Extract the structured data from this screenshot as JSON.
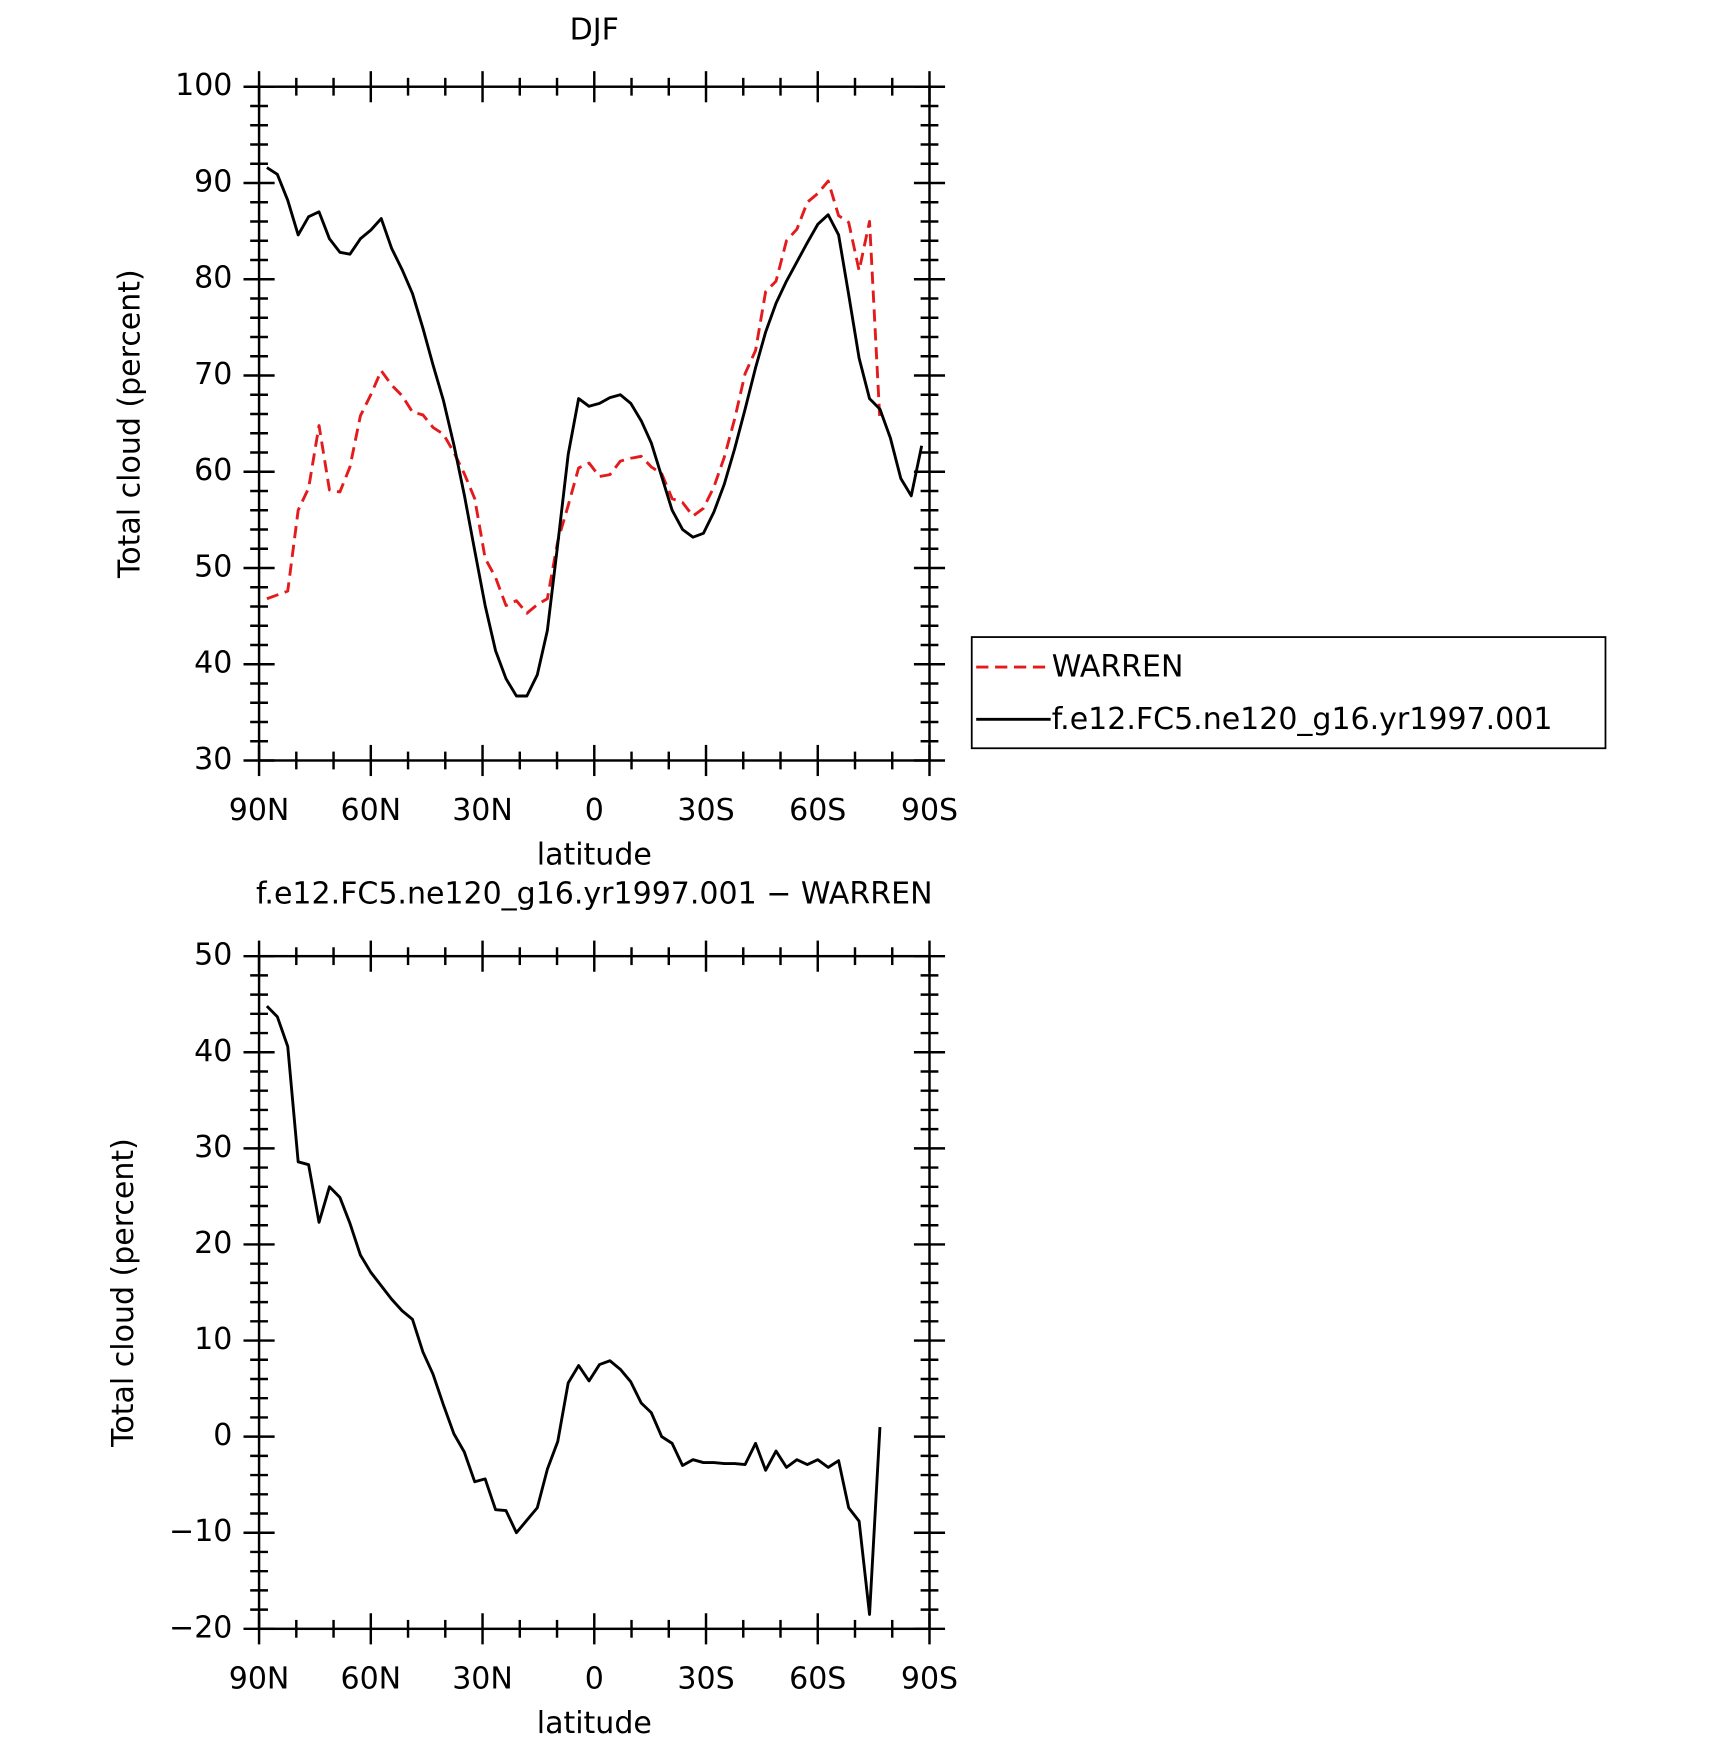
{
  "chart_data": [
    {
      "type": "line",
      "title": "DJF",
      "xlabel": "latitude",
      "ylabel": "Total cloud (percent)",
      "x": [
        87.9,
        85.1,
        82.3,
        79.5,
        76.7,
        73.9,
        71.1,
        68.3,
        65.6,
        62.8,
        60.0,
        57.2,
        54.4,
        51.6,
        48.8,
        46.0,
        43.3,
        40.5,
        37.7,
        34.9,
        32.1,
        29.3,
        26.5,
        23.7,
        20.9,
        18.1,
        15.3,
        12.6,
        9.8,
        7.0,
        4.2,
        1.4,
        -1.4,
        -4.2,
        -7.0,
        -9.8,
        -12.6,
        -15.3,
        -18.1,
        -20.9,
        -23.7,
        -26.5,
        -29.3,
        -32.1,
        -34.9,
        -37.7,
        -40.5,
        -43.3,
        -46.0,
        -48.8,
        -51.6,
        -54.4,
        -57.2,
        -60.0,
        -62.8,
        -65.6,
        -68.3,
        -71.1,
        -73.9,
        -76.7,
        -79.5,
        -82.3,
        -85.1,
        -87.9
      ],
      "xlim": [
        90,
        -90
      ],
      "xticks": [
        {
          "value": 90,
          "label": "90N"
        },
        {
          "value": 60,
          "label": "60N"
        },
        {
          "value": 30,
          "label": "30N"
        },
        0,
        {
          "value": -30,
          "label": "30S"
        },
        {
          "value": -60,
          "label": "60S"
        },
        {
          "value": -90,
          "label": "90S"
        }
      ],
      "ylim": [
        30,
        100
      ],
      "yticks": [
        30,
        40,
        50,
        60,
        70,
        80,
        90,
        100
      ],
      "series": [
        {
          "name": "WARREN",
          "color": "#e41a1c",
          "dash": true,
          "values": [
            46.8,
            47.2,
            47.6,
            56.0,
            58.3,
            64.8,
            58.1,
            57.9,
            60.5,
            65.8,
            68.0,
            70.5,
            69.0,
            67.9,
            66.2,
            65.9,
            64.6,
            63.9,
            62.0,
            59.8,
            57.2,
            51.0,
            49.0,
            46.1,
            46.6,
            45.3,
            46.2,
            46.8,
            52.8,
            56.5,
            60.4,
            60.9,
            59.5,
            59.7,
            61.1,
            61.4,
            61.6,
            60.5,
            59.8,
            57.2,
            56.8,
            55.4,
            56.2,
            58.4,
            61.5,
            65.5,
            70.2,
            72.6,
            78.7,
            79.8,
            84.0,
            85.2,
            88.0,
            88.9,
            90.2,
            86.6,
            85.9,
            80.9,
            86.0,
            65.2,
            null,
            null,
            null,
            null
          ]
        },
        {
          "name": "f.e12.FC5.ne120_g16.yr1997.001",
          "color": "#000000",
          "dash": false,
          "values": [
            91.6,
            90.9,
            88.2,
            84.6,
            86.5,
            87.0,
            84.2,
            82.8,
            82.6,
            84.2,
            85.1,
            86.3,
            83.2,
            81.0,
            78.5,
            74.9,
            71.1,
            67.4,
            62.8,
            57.6,
            51.8,
            46.1,
            41.4,
            38.5,
            36.7,
            36.7,
            38.9,
            43.5,
            52.5,
            61.8,
            67.6,
            66.8,
            67.1,
            67.7,
            68.0,
            67.1,
            65.3,
            63.0,
            59.5,
            56.0,
            54.0,
            53.2,
            53.6,
            55.8,
            58.7,
            62.4,
            66.5,
            70.8,
            74.5,
            77.5,
            79.8,
            81.8,
            83.8,
            85.7,
            86.7,
            84.6,
            78.4,
            71.8,
            67.6,
            66.5,
            63.5,
            59.3,
            57.5,
            62.7
          ]
        }
      ]
    },
    {
      "type": "line",
      "title": "f.e12.FC5.ne120_g16.yr1997.001 − WARREN",
      "xlabel": "latitude",
      "ylabel": "Total cloud (percent)",
      "x": [
        87.9,
        85.1,
        82.3,
        79.5,
        76.7,
        73.9,
        71.1,
        68.3,
        65.6,
        62.8,
        60.0,
        57.2,
        54.4,
        51.6,
        48.8,
        46.0,
        43.3,
        40.5,
        37.7,
        34.9,
        32.1,
        29.3,
        26.5,
        23.7,
        20.9,
        18.1,
        15.3,
        12.6,
        9.8,
        7.0,
        4.2,
        1.4,
        -1.4,
        -4.2,
        -7.0,
        -9.8,
        -12.6,
        -15.3,
        -18.1,
        -20.9,
        -23.7,
        -26.5,
        -29.3,
        -32.1,
        -34.9,
        -37.7,
        -40.5,
        -43.3,
        -46.0,
        -48.8,
        -51.6,
        -54.4,
        -57.2,
        -60.0,
        -62.8,
        -65.6,
        -68.3,
        -71.1,
        -73.9,
        -76.7,
        -79.5,
        -82.3,
        -85.1,
        -87.9
      ],
      "xlim": [
        90,
        -90
      ],
      "xticks": [
        {
          "value": 90,
          "label": "90N"
        },
        {
          "value": 60,
          "label": "60N"
        },
        {
          "value": 30,
          "label": "30N"
        },
        0,
        {
          "value": -30,
          "label": "30S"
        },
        {
          "value": -60,
          "label": "60S"
        },
        {
          "value": -90,
          "label": "90S"
        }
      ],
      "ylim": [
        -20,
        50
      ],
      "yticks": [
        {
          "value": -20,
          "label": "−20"
        },
        {
          "value": -10,
          "label": "−10"
        },
        0,
        10,
        20,
        30,
        40,
        50
      ],
      "series": [
        {
          "color": "#000000",
          "dash": false,
          "values": [
            44.8,
            43.7,
            40.6,
            28.6,
            28.3,
            22.3,
            26.0,
            24.9,
            22.2,
            18.9,
            17.1,
            15.7,
            14.3,
            13.1,
            12.2,
            8.8,
            6.5,
            3.3,
            0.3,
            -1.6,
            -4.7,
            -4.4,
            -7.6,
            -7.7,
            -10.0,
            -8.7,
            -7.4,
            -3.4,
            -0.5,
            5.6,
            7.4,
            5.8,
            7.5,
            7.9,
            7.0,
            5.7,
            3.5,
            2.5,
            0.0,
            -0.7,
            -3.0,
            -2.4,
            -2.7,
            -2.7,
            -2.8,
            -2.8,
            -2.9,
            -0.7,
            -3.5,
            -1.5,
            -3.2,
            -2.4,
            -2.9,
            -2.4,
            -3.2,
            -2.5,
            -7.4,
            -8.8,
            -18.5,
            1.0,
            null,
            null,
            null,
            null
          ]
        }
      ]
    }
  ]
}
